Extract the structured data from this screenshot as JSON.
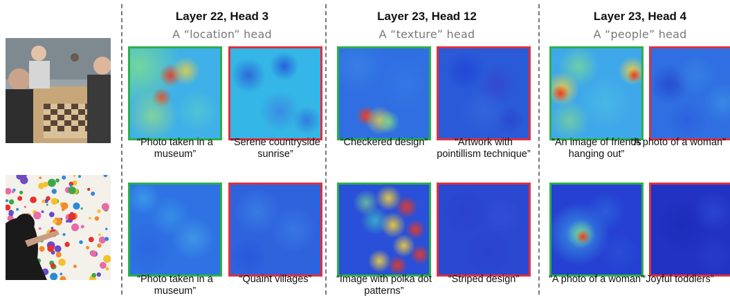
{
  "groups": [
    {
      "title": "Layer 22, Head 3",
      "subtitle": "A “location” head",
      "rows": [
        {
          "positive_caption": "“Photo taken in a museum”",
          "negative_caption": "“Serene countryside sunrise”"
        },
        {
          "positive_caption": "“Photo taken in a museum”",
          "negative_caption": "“Quaint villages”"
        }
      ]
    },
    {
      "title": "Layer 23, Head 12",
      "subtitle": "A “texture” head",
      "rows": [
        {
          "positive_caption": "“Checkered design”",
          "negative_caption": "“Artwork with pointillism technique”"
        },
        {
          "positive_caption": "“Image with polka dot patterns”",
          "negative_caption": "“Striped design”"
        }
      ]
    },
    {
      "title": "Layer 23, Head 4",
      "subtitle": "A “people” head",
      "rows": [
        {
          "positive_caption": "“An image of friends hanging out”",
          "negative_caption": "“A photo of a woman”"
        },
        {
          "positive_caption": "“A photo of a woman”",
          "negative_caption": "“Joyful toddlers”"
        }
      ]
    }
  ],
  "colors": {
    "positive_border": "#2bb04a",
    "negative_border": "#e0303a",
    "divider": "#777777",
    "subtitle": "#777777",
    "heatmap_low": "#1f3fd8",
    "heatmap_mid": "#27c3e6",
    "heatmap_high": "#f03a1c"
  }
}
